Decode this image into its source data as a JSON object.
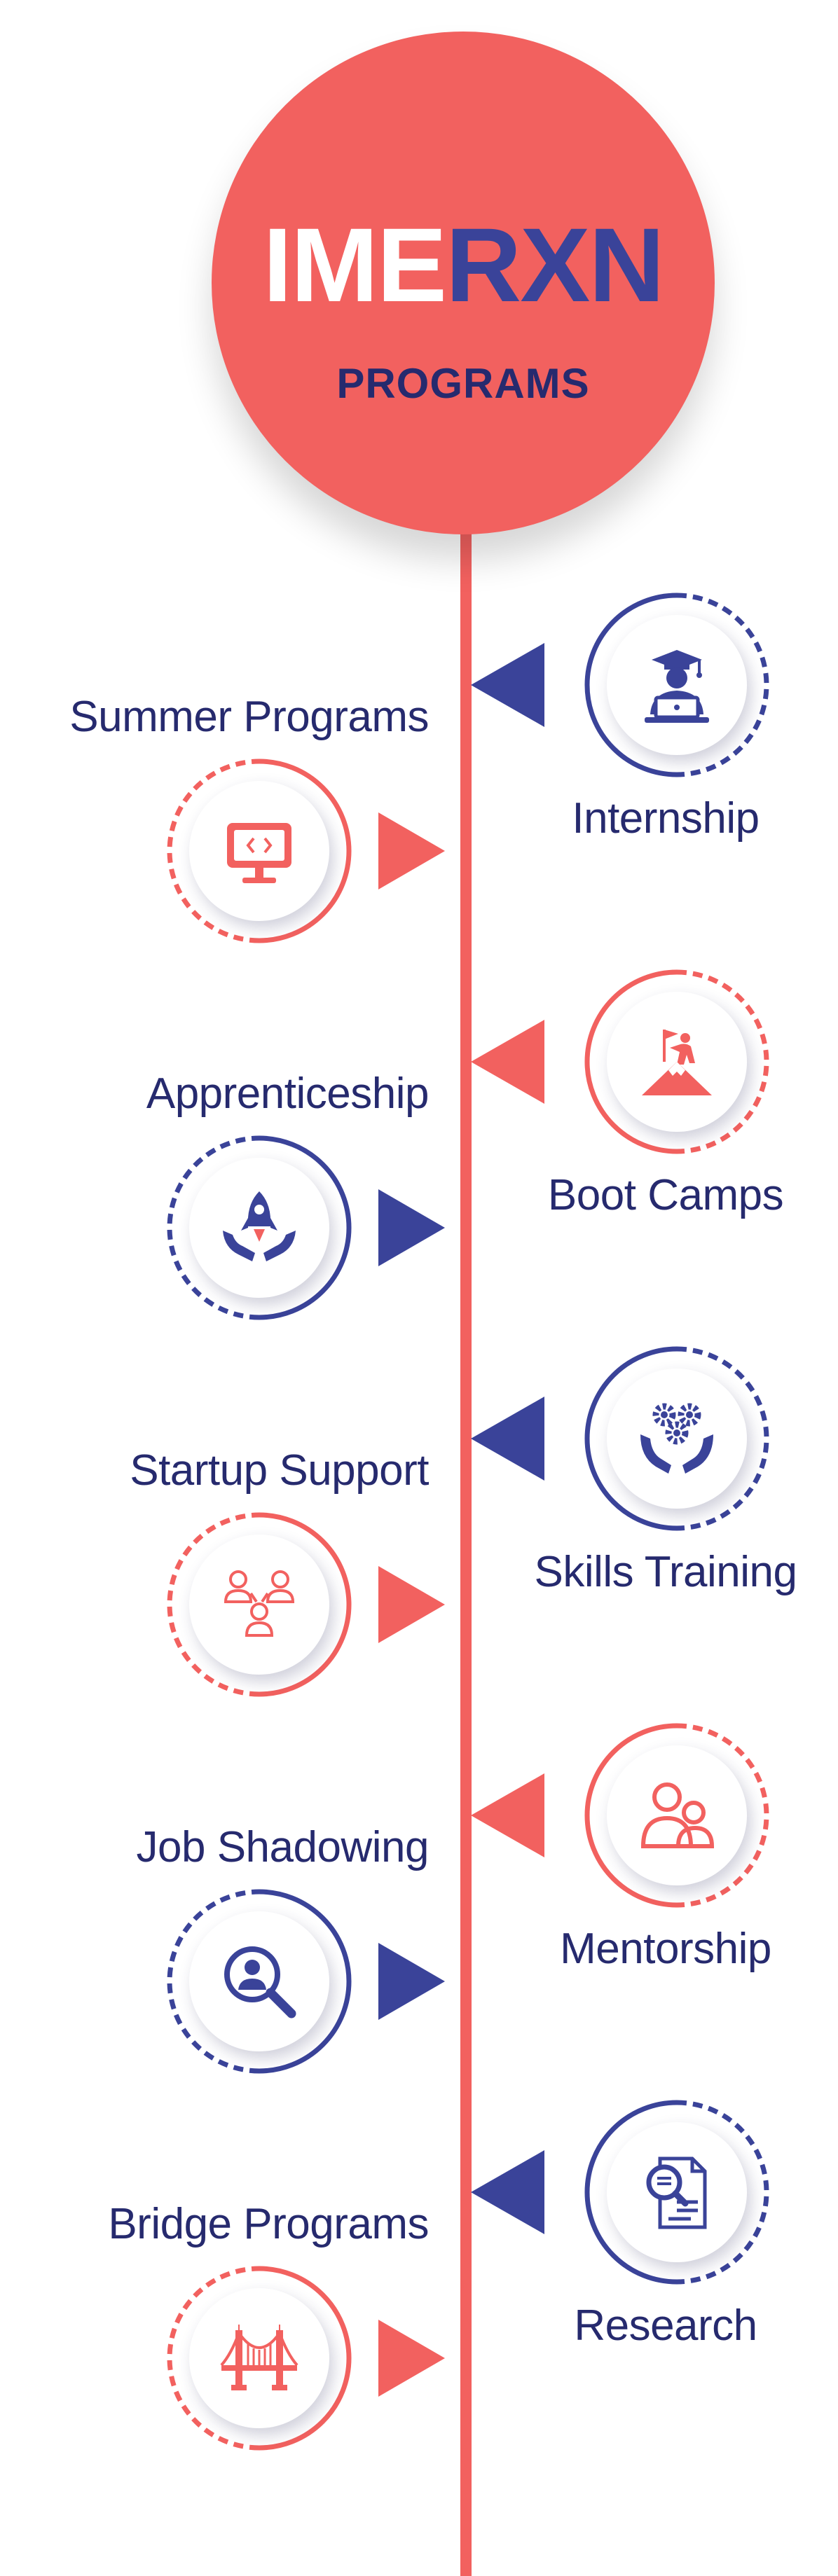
{
  "header": {
    "brand_part1": "IME",
    "brand_part2": "RXN",
    "subtitle": "PROGRAMS"
  },
  "colors": {
    "coral": "#f2615f",
    "navy": "#3a4399",
    "dark_navy": "#262a6e",
    "white": "#ffffff"
  },
  "timeline": {
    "programs": [
      {
        "label": "Internship",
        "side": "right",
        "icon": "graduate-laptop-icon",
        "accent": "navy"
      },
      {
        "label": "Summer Programs",
        "side": "left",
        "icon": "monitor-code-icon",
        "accent": "coral"
      },
      {
        "label": "Boot Camps",
        "side": "right",
        "icon": "mountain-flag-icon",
        "accent": "coral"
      },
      {
        "label": "Apprenticeship",
        "side": "left",
        "icon": "rocket-hands-icon",
        "accent": "navy"
      },
      {
        "label": "Skills Training",
        "side": "right",
        "icon": "gears-hands-icon",
        "accent": "navy"
      },
      {
        "label": "Startup Support",
        "side": "left",
        "icon": "team-network-icon",
        "accent": "coral"
      },
      {
        "label": "Mentorship",
        "side": "right",
        "icon": "mentor-people-icon",
        "accent": "coral"
      },
      {
        "label": "Job Shadowing",
        "side": "left",
        "icon": "magnifier-person-icon",
        "accent": "navy"
      },
      {
        "label": "Research",
        "side": "right",
        "icon": "document-search-icon",
        "accent": "navy"
      },
      {
        "label": "Bridge Programs",
        "side": "left",
        "icon": "bridge-icon",
        "accent": "coral"
      }
    ]
  }
}
